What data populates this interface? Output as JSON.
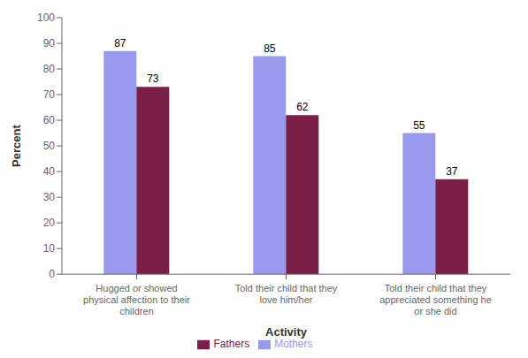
{
  "chart_data": {
    "type": "bar",
    "categories": [
      "Hugged or showed\nphysical affection to their\nchildren",
      "Told their child that they\nlove him/her",
      "Told their child that they\nappreciated something he\nor she did"
    ],
    "series": [
      {
        "name": "Mothers",
        "color": "#9999ee",
        "values": [
          87,
          85,
          55
        ]
      },
      {
        "name": "Fathers",
        "color": "#7a2048",
        "values": [
          73,
          62,
          37
        ]
      }
    ],
    "xlabel": "Activity",
    "ylabel": "Percent",
    "ylim": [
      0,
      100
    ],
    "yticks": [
      0,
      10,
      20,
      30,
      40,
      50,
      60,
      70,
      80,
      90,
      100
    ],
    "data_labels": true,
    "legend": "bottom",
    "grid": false
  }
}
